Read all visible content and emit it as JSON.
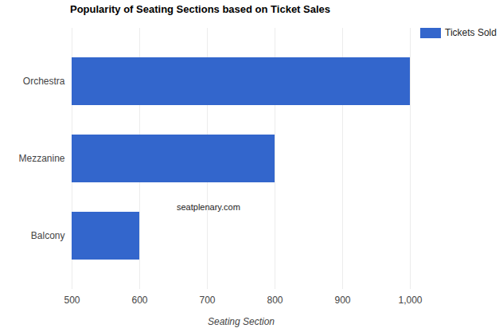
{
  "chart_data": {
    "type": "bar",
    "orientation": "horizontal",
    "title": "Popularity of Seating Sections based on Ticket Sales",
    "categories": [
      "Orchestra",
      "Mezzanine",
      "Balcony"
    ],
    "series": [
      {
        "name": "Tickets Sold",
        "color": "#3366cc",
        "values": [
          1000,
          800,
          600
        ]
      }
    ],
    "x_label": "Seating Section",
    "annotation": "seatplenary.com",
    "xlim": [
      500,
      1000
    ],
    "xticks": [
      500,
      600,
      700,
      800,
      900,
      {
        "value": 1000,
        "label": "1,000"
      }
    ],
    "grid": true,
    "legend": "top-right"
  }
}
